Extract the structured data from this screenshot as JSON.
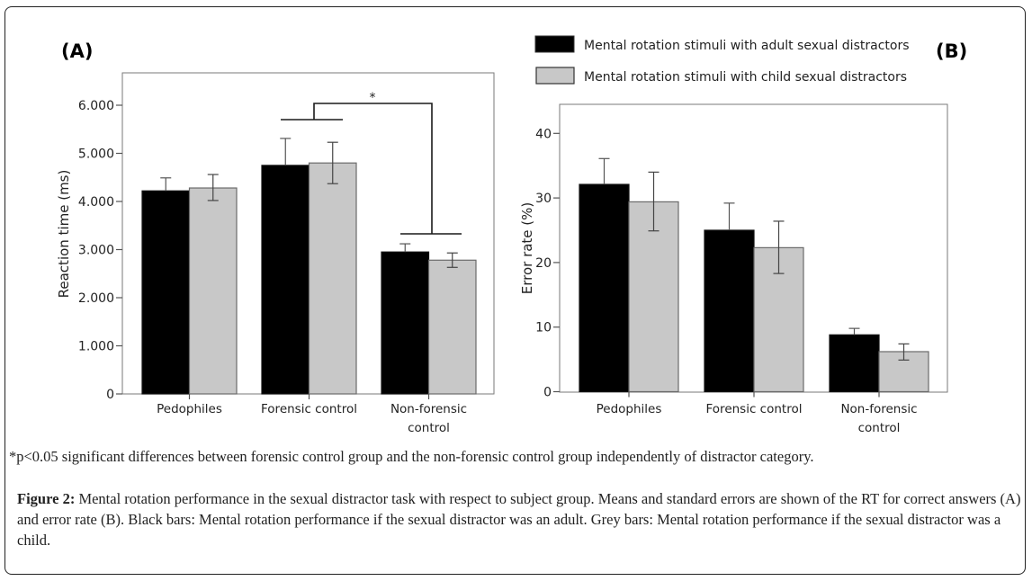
{
  "figure": {
    "footnote": "*p<0.05 significant differences between forensic control group and the non-forensic control group independently of distractor category.",
    "caption_label": "Figure 2:",
    "caption_text": " Mental rotation performance in the sexual distractor task with respect to subject group. Means and standard errors are shown of the RT for correct answers (A) and error rate (B). Black bars: Mental rotation performance if the sexual distractor was an adult. Grey bars: Mental rotation performance if the sexual distractor was a child."
  },
  "legend": {
    "items": [
      {
        "label": "Mental rotation stimuli with adult sexual distractors",
        "color": "#000000"
      },
      {
        "label": "Mental rotation stimuli with child sexual distractors",
        "color": "#c8c8c8"
      }
    ]
  },
  "chart_data": [
    {
      "type": "bar",
      "panel": "(A)",
      "title": "",
      "xlabel": "",
      "ylabel": "Reaction time (ms)",
      "ylim": [
        0,
        6600
      ],
      "yticks": [
        0,
        1000,
        2000,
        3000,
        4000,
        5000,
        6000
      ],
      "ytick_labels": [
        "0",
        "1.000",
        "2.000",
        "3.000",
        "4.000",
        "5.000",
        "6.000"
      ],
      "categories": [
        "Pedophiles",
        "Forensic control",
        "Non-forensic control"
      ],
      "category_lines": [
        [
          "Pedophiles"
        ],
        [
          "Forensic control"
        ],
        [
          "Non-forensic",
          "control"
        ]
      ],
      "series": [
        {
          "name": "Mental rotation stimuli with adult sexual distractors",
          "color": "#000000",
          "values": [
            4220,
            4750,
            2950
          ],
          "error_upper": [
            4490,
            5310,
            3120
          ],
          "error_lower": [
            4220,
            4750,
            2950
          ]
        },
        {
          "name": "Mental rotation stimuli with child sexual distractors",
          "color": "#c8c8c8",
          "values": [
            4280,
            4800,
            2780
          ],
          "error_upper": [
            4560,
            5230,
            2930
          ],
          "error_lower": [
            4020,
            4370,
            2630
          ]
        }
      ],
      "annotations": [
        {
          "type": "significance-bracket",
          "text": "*",
          "from": "Forensic control",
          "to": "Non-forensic control"
        }
      ],
      "grid": false
    },
    {
      "type": "bar",
      "panel": "(B)",
      "title": "",
      "xlabel": "",
      "ylabel": "Error rate (%)",
      "ylim": [
        0,
        44.5
      ],
      "yticks": [
        0,
        10,
        20,
        30,
        40
      ],
      "ytick_labels": [
        "0",
        "10",
        "20",
        "30",
        "40"
      ],
      "categories": [
        "Pedophiles",
        "Forensic control",
        "Non-forensic control"
      ],
      "category_lines": [
        [
          "Pedophiles"
        ],
        [
          "Forensic control"
        ],
        [
          "Non-forensic",
          "control"
        ]
      ],
      "series": [
        {
          "name": "Mental rotation stimuli with adult sexual distractors",
          "color": "#000000",
          "values": [
            32.1,
            25.0,
            8.8
          ],
          "error_upper": [
            36.1,
            29.2,
            9.8
          ],
          "error_lower": [
            32.1,
            25.0,
            8.8
          ]
        },
        {
          "name": "Mental rotation stimuli with child sexual distractors",
          "color": "#c8c8c8",
          "values": [
            29.4,
            22.3,
            6.2
          ],
          "error_upper": [
            34.0,
            26.4,
            7.4
          ],
          "error_lower": [
            24.9,
            18.3,
            4.9
          ]
        }
      ],
      "grid": false,
      "legend_position": "top"
    }
  ]
}
